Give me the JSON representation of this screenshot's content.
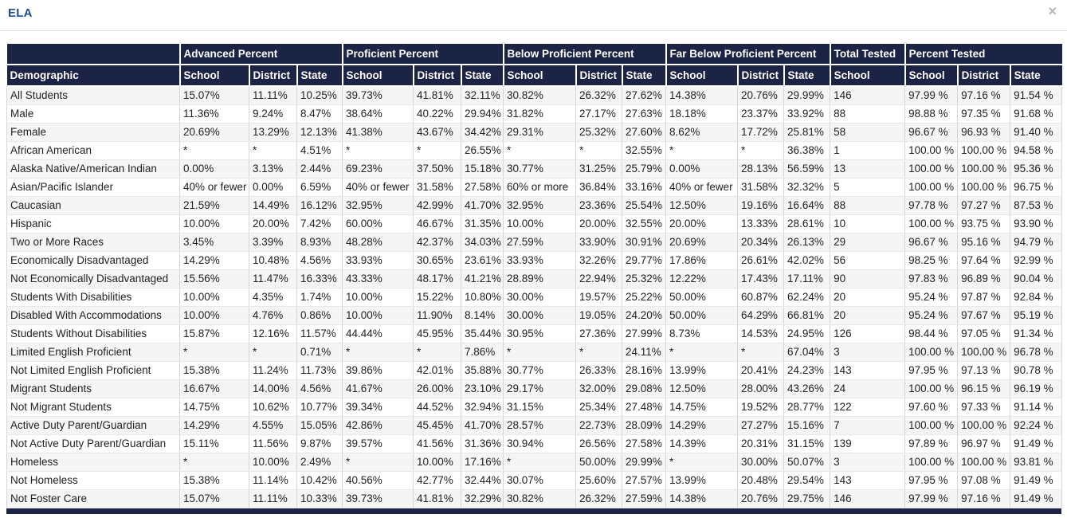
{
  "panel": {
    "title": "ELA",
    "close_icon": "×"
  },
  "colors": {
    "header_bg": "#1b2444",
    "title_blue": "#1b4e9b",
    "row_stripe": "#f5f5f6"
  },
  "table": {
    "demographic_header": "Demographic",
    "groups": [
      {
        "label": "Advanced Percent",
        "subcols": [
          "School",
          "District",
          "State"
        ]
      },
      {
        "label": "Proficient Percent",
        "subcols": [
          "School",
          "District",
          "State"
        ]
      },
      {
        "label": "Below Proficient Percent",
        "subcols": [
          "School",
          "District",
          "State"
        ]
      },
      {
        "label": "Far Below Proficient Percent",
        "subcols": [
          "School",
          "District",
          "State"
        ]
      },
      {
        "label": "Total Tested",
        "subcols": [
          "School"
        ]
      },
      {
        "label": "Percent Tested",
        "subcols": [
          "School",
          "District",
          "State"
        ]
      }
    ],
    "rows": [
      {
        "demographic": "All Students",
        "values": [
          "15.07%",
          "11.11%",
          "10.25%",
          "39.73%",
          "41.81%",
          "32.11%",
          "30.82%",
          "26.32%",
          "27.62%",
          "14.38%",
          "20.76%",
          "29.99%",
          "146",
          "97.99 %",
          "97.16 %",
          "91.54 %"
        ]
      },
      {
        "demographic": "Male",
        "values": [
          "11.36%",
          "9.24%",
          "8.47%",
          "38.64%",
          "40.22%",
          "29.94%",
          "31.82%",
          "27.17%",
          "27.63%",
          "18.18%",
          "23.37%",
          "33.92%",
          "88",
          "98.88 %",
          "97.35 %",
          "91.68 %"
        ]
      },
      {
        "demographic": "Female",
        "values": [
          "20.69%",
          "13.29%",
          "12.13%",
          "41.38%",
          "43.67%",
          "34.42%",
          "29.31%",
          "25.32%",
          "27.60%",
          "8.62%",
          "17.72%",
          "25.81%",
          "58",
          "96.67 %",
          "96.93 %",
          "91.40 %"
        ]
      },
      {
        "demographic": "African American",
        "values": [
          "*",
          "*",
          "4.51%",
          "*",
          "*",
          "26.55%",
          "*",
          "*",
          "32.55%",
          "*",
          "*",
          "36.38%",
          "1",
          "100.00 %",
          "100.00 %",
          "94.58 %"
        ]
      },
      {
        "demographic": "Alaska Native/American Indian",
        "values": [
          "0.00%",
          "3.13%",
          "2.44%",
          "69.23%",
          "37.50%",
          "15.18%",
          "30.77%",
          "31.25%",
          "25.79%",
          "0.00%",
          "28.13%",
          "56.59%",
          "13",
          "100.00 %",
          "100.00 %",
          "95.36 %"
        ]
      },
      {
        "demographic": "Asian/Pacific Islander",
        "values": [
          "40% or fewer",
          "0.00%",
          "6.59%",
          "40% or fewer",
          "31.58%",
          "27.58%",
          "60% or more",
          "36.84%",
          "33.16%",
          "40% or fewer",
          "31.58%",
          "32.32%",
          "5",
          "100.00 %",
          "100.00 %",
          "96.75 %"
        ]
      },
      {
        "demographic": "Caucasian",
        "values": [
          "21.59%",
          "14.49%",
          "16.12%",
          "32.95%",
          "42.99%",
          "41.70%",
          "32.95%",
          "23.36%",
          "25.54%",
          "12.50%",
          "19.16%",
          "16.64%",
          "88",
          "97.78 %",
          "97.27 %",
          "87.53 %"
        ]
      },
      {
        "demographic": "Hispanic",
        "values": [
          "10.00%",
          "20.00%",
          "7.42%",
          "60.00%",
          "46.67%",
          "31.35%",
          "10.00%",
          "20.00%",
          "32.55%",
          "20.00%",
          "13.33%",
          "28.61%",
          "10",
          "100.00 %",
          "93.75 %",
          "93.90 %"
        ]
      },
      {
        "demographic": "Two or More Races",
        "values": [
          "3.45%",
          "3.39%",
          "8.93%",
          "48.28%",
          "42.37%",
          "34.03%",
          "27.59%",
          "33.90%",
          "30.91%",
          "20.69%",
          "20.34%",
          "26.13%",
          "29",
          "96.67 %",
          "95.16 %",
          "94.79 %"
        ]
      },
      {
        "demographic": "Economically Disadvantaged",
        "values": [
          "14.29%",
          "10.48%",
          "4.56%",
          "33.93%",
          "30.65%",
          "23.61%",
          "33.93%",
          "32.26%",
          "29.77%",
          "17.86%",
          "26.61%",
          "42.02%",
          "56",
          "98.25 %",
          "97.64 %",
          "92.99 %"
        ]
      },
      {
        "demographic": "Not Economically Disadvantaged",
        "values": [
          "15.56%",
          "11.47%",
          "16.33%",
          "43.33%",
          "48.17%",
          "41.21%",
          "28.89%",
          "22.94%",
          "25.32%",
          "12.22%",
          "17.43%",
          "17.11%",
          "90",
          "97.83 %",
          "96.89 %",
          "90.04 %"
        ]
      },
      {
        "demographic": "Students With Disabilities",
        "values": [
          "10.00%",
          "4.35%",
          "1.74%",
          "10.00%",
          "15.22%",
          "10.80%",
          "30.00%",
          "19.57%",
          "25.22%",
          "50.00%",
          "60.87%",
          "62.24%",
          "20",
          "95.24 %",
          "97.87 %",
          "92.84 %"
        ]
      },
      {
        "demographic": "Disabled With Accommodations",
        "values": [
          "10.00%",
          "4.76%",
          "0.86%",
          "10.00%",
          "11.90%",
          "8.14%",
          "30.00%",
          "19.05%",
          "24.20%",
          "50.00%",
          "64.29%",
          "66.81%",
          "20",
          "95.24 %",
          "97.67 %",
          "95.19 %"
        ]
      },
      {
        "demographic": "Students Without Disabilities",
        "values": [
          "15.87%",
          "12.16%",
          "11.57%",
          "44.44%",
          "45.95%",
          "35.44%",
          "30.95%",
          "27.36%",
          "27.99%",
          "8.73%",
          "14.53%",
          "24.95%",
          "126",
          "98.44 %",
          "97.05 %",
          "91.34 %"
        ]
      },
      {
        "demographic": "Limited English Proficient",
        "values": [
          "*",
          "*",
          "0.71%",
          "*",
          "*",
          "7.86%",
          "*",
          "*",
          "24.11%",
          "*",
          "*",
          "67.04%",
          "3",
          "100.00 %",
          "100.00 %",
          "96.78 %"
        ]
      },
      {
        "demographic": "Not Limited English Proficient",
        "values": [
          "15.38%",
          "11.24%",
          "11.73%",
          "39.86%",
          "42.01%",
          "35.88%",
          "30.77%",
          "26.33%",
          "28.16%",
          "13.99%",
          "20.41%",
          "24.23%",
          "143",
          "97.95 %",
          "97.13 %",
          "90.78 %"
        ]
      },
      {
        "demographic": "Migrant Students",
        "values": [
          "16.67%",
          "14.00%",
          "4.56%",
          "41.67%",
          "26.00%",
          "23.10%",
          "29.17%",
          "32.00%",
          "29.08%",
          "12.50%",
          "28.00%",
          "43.26%",
          "24",
          "100.00 %",
          "96.15 %",
          "96.19 %"
        ]
      },
      {
        "demographic": "Not Migrant Students",
        "values": [
          "14.75%",
          "10.62%",
          "10.77%",
          "39.34%",
          "44.52%",
          "32.94%",
          "31.15%",
          "25.34%",
          "27.48%",
          "14.75%",
          "19.52%",
          "28.77%",
          "122",
          "97.60 %",
          "97.33 %",
          "91.14 %"
        ]
      },
      {
        "demographic": "Active Duty Parent/Guardian",
        "values": [
          "14.29%",
          "4.55%",
          "15.05%",
          "42.86%",
          "45.45%",
          "41.70%",
          "28.57%",
          "22.73%",
          "28.09%",
          "14.29%",
          "27.27%",
          "15.16%",
          "7",
          "100.00 %",
          "100.00 %",
          "92.24 %"
        ]
      },
      {
        "demographic": "Not Active Duty Parent/Guardian",
        "values": [
          "15.11%",
          "11.56%",
          "9.87%",
          "39.57%",
          "41.56%",
          "31.36%",
          "30.94%",
          "26.56%",
          "27.58%",
          "14.39%",
          "20.31%",
          "31.15%",
          "139",
          "97.89 %",
          "96.97 %",
          "91.49 %"
        ]
      },
      {
        "demographic": "Homeless",
        "values": [
          "*",
          "10.00%",
          "2.49%",
          "*",
          "10.00%",
          "17.16%",
          "*",
          "50.00%",
          "29.99%",
          "*",
          "30.00%",
          "50.07%",
          "3",
          "100.00 %",
          "100.00 %",
          "93.81 %"
        ]
      },
      {
        "demographic": "Not Homeless",
        "values": [
          "15.38%",
          "11.14%",
          "10.42%",
          "40.56%",
          "42.77%",
          "32.44%",
          "30.07%",
          "25.60%",
          "27.57%",
          "13.99%",
          "20.48%",
          "29.54%",
          "143",
          "97.95 %",
          "97.08 %",
          "91.49 %"
        ]
      },
      {
        "demographic": "Not Foster Care",
        "values": [
          "15.07%",
          "11.11%",
          "10.33%",
          "39.73%",
          "41.81%",
          "32.29%",
          "30.82%",
          "26.32%",
          "27.59%",
          "14.38%",
          "20.76%",
          "29.75%",
          "146",
          "97.99 %",
          "97.16 %",
          "91.49 %"
        ]
      }
    ]
  }
}
